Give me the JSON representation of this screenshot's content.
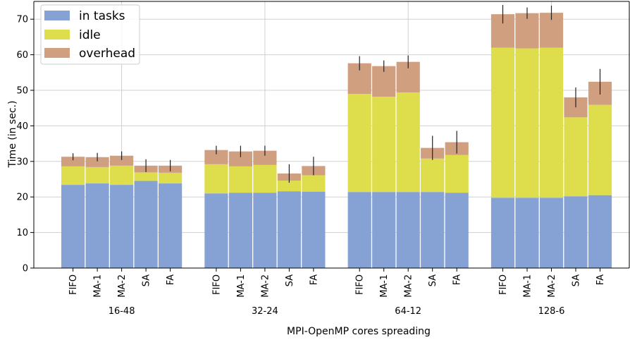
{
  "chart_data": {
    "type": "bar",
    "stacked": true,
    "xlabel": "MPI-OpenMP cores spreading",
    "ylabel": "Time (in sec.)",
    "ylim": [
      0,
      75
    ],
    "yticks": [
      0,
      10,
      20,
      30,
      40,
      50,
      60,
      70
    ],
    "grid": true,
    "legend_position": "top-left",
    "groups": [
      {
        "name": "16-48",
        "categories": [
          "FIFO",
          "MA-1",
          "MA-2",
          "SA",
          "FA"
        ]
      },
      {
        "name": "32-24",
        "categories": [
          "FIFO",
          "MA-1",
          "MA-2",
          "SA",
          "FA"
        ]
      },
      {
        "name": "64-12",
        "categories": [
          "FIFO",
          "MA-1",
          "MA-2",
          "SA",
          "FA"
        ]
      },
      {
        "name": "128-6",
        "categories": [
          "FIFO",
          "MA-1",
          "MA-2",
          "SA",
          "FA"
        ]
      }
    ],
    "series": [
      {
        "name": "in tasks",
        "color": "#86a2d5",
        "values": [
          [
            23.4,
            23.8,
            23.4,
            24.5,
            23.8
          ],
          [
            21.0,
            21.2,
            21.2,
            21.6,
            21.5
          ],
          [
            21.4,
            21.4,
            21.4,
            21.4,
            21.2
          ],
          [
            19.8,
            19.8,
            19.8,
            20.2,
            20.5
          ]
        ]
      },
      {
        "name": "idle",
        "color": "#dedd4b",
        "values": [
          [
            5.2,
            4.6,
            5.4,
            2.4,
            3.0
          ],
          [
            8.2,
            7.4,
            7.8,
            3.0,
            4.6
          ],
          [
            27.6,
            26.8,
            28.0,
            9.4,
            10.6
          ],
          [
            42.2,
            42.0,
            42.2,
            22.2,
            25.4
          ]
        ]
      },
      {
        "name": "overhead",
        "color": "#cf9f7f",
        "values": [
          [
            2.7,
            2.8,
            2.8,
            1.9,
            2.0
          ],
          [
            4.0,
            4.2,
            4.0,
            2.0,
            2.6
          ],
          [
            8.6,
            8.6,
            8.6,
            3.0,
            3.6
          ],
          [
            9.4,
            9.9,
            9.8,
            5.6,
            6.5
          ]
        ]
      }
    ],
    "error_bars": [
      [
        1.0,
        1.2,
        1.2,
        1.8,
        1.6
      ],
      [
        1.2,
        1.6,
        1.4,
        2.6,
        2.6
      ],
      [
        2.0,
        1.6,
        1.8,
        3.4,
        3.2
      ],
      [
        2.6,
        1.6,
        2.0,
        2.8,
        3.6
      ]
    ]
  }
}
